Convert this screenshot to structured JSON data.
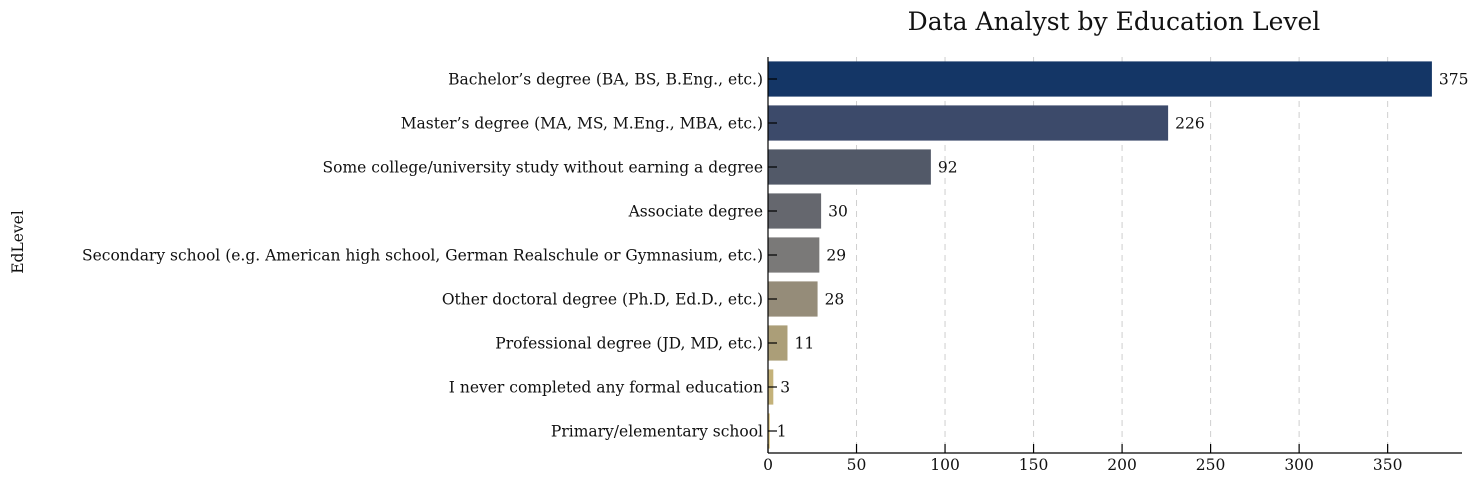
{
  "chart_data": {
    "type": "bar",
    "orientation": "horizontal",
    "title": "Data Analyst by Education Level",
    "xlabel": "",
    "ylabel": "EdLevel",
    "xlim": [
      0,
      392
    ],
    "xticks": [
      0,
      50,
      100,
      150,
      200,
      250,
      300,
      350
    ],
    "grid": "x-dashed",
    "categories": [
      "Bachelor’s degree (BA, BS, B.Eng., etc.)",
      "Master’s degree (MA, MS, M.Eng., MBA, etc.)",
      "Some college/university study without earning a degree",
      "Associate degree",
      "Secondary school (e.g. American high school, German Realschule or Gymnasium, etc.)",
      "Other doctoral degree (Ph.D, Ed.D., etc.)",
      "Professional degree (JD, MD, etc.)",
      "I never completed any formal education",
      "Primary/elementary school"
    ],
    "values": [
      375,
      226,
      92,
      30,
      29,
      28,
      11,
      3,
      1
    ],
    "colors": [
      "#143666",
      "#3c4a6a",
      "#525968",
      "#65676e",
      "#7a7978",
      "#958c79",
      "#ab9e78",
      "#c4b27a",
      "#d8c17d"
    ]
  }
}
